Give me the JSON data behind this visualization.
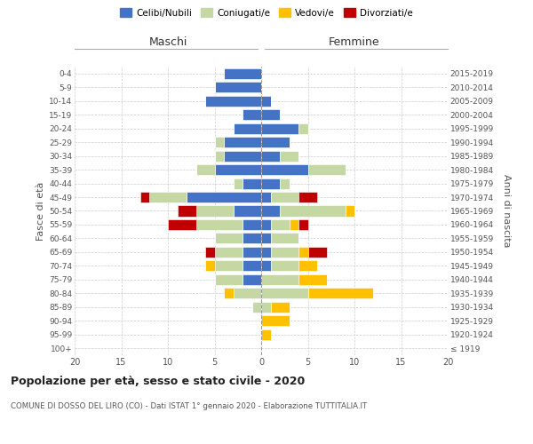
{
  "age_groups": [
    "100+",
    "95-99",
    "90-94",
    "85-89",
    "80-84",
    "75-79",
    "70-74",
    "65-69",
    "60-64",
    "55-59",
    "50-54",
    "45-49",
    "40-44",
    "35-39",
    "30-34",
    "25-29",
    "20-24",
    "15-19",
    "10-14",
    "5-9",
    "0-4"
  ],
  "birth_years": [
    "≤ 1919",
    "1920-1924",
    "1925-1929",
    "1930-1934",
    "1935-1939",
    "1940-1944",
    "1945-1949",
    "1950-1954",
    "1955-1959",
    "1960-1964",
    "1965-1969",
    "1970-1974",
    "1975-1979",
    "1980-1984",
    "1985-1989",
    "1990-1994",
    "1995-1999",
    "2000-2004",
    "2005-2009",
    "2010-2014",
    "2015-2019"
  ],
  "colors": {
    "celibe": "#4472c4",
    "coniugato": "#c5d8a4",
    "vedovo": "#ffc000",
    "divorziato": "#c00000"
  },
  "male": {
    "celibe": [
      0,
      0,
      0,
      0,
      0,
      2,
      2,
      2,
      2,
      2,
      3,
      8,
      2,
      5,
      4,
      4,
      3,
      2,
      6,
      5,
      4
    ],
    "coniugato": [
      0,
      0,
      0,
      1,
      3,
      3,
      3,
      3,
      3,
      5,
      4,
      4,
      1,
      2,
      1,
      1,
      0,
      0,
      0,
      0,
      0
    ],
    "vedovo": [
      0,
      0,
      0,
      0,
      1,
      0,
      1,
      0,
      0,
      0,
      0,
      0,
      0,
      0,
      0,
      0,
      0,
      0,
      0,
      0,
      0
    ],
    "divorziato": [
      0,
      0,
      0,
      0,
      0,
      0,
      0,
      1,
      0,
      3,
      2,
      1,
      0,
      0,
      0,
      0,
      0,
      0,
      0,
      0,
      0
    ]
  },
  "female": {
    "nubile": [
      0,
      0,
      0,
      0,
      0,
      0,
      1,
      1,
      1,
      1,
      2,
      1,
      2,
      5,
      2,
      3,
      4,
      2,
      1,
      0,
      0
    ],
    "coniugata": [
      0,
      0,
      0,
      1,
      5,
      4,
      3,
      3,
      3,
      2,
      7,
      3,
      1,
      4,
      2,
      0,
      1,
      0,
      0,
      0,
      0
    ],
    "vedova": [
      0,
      1,
      3,
      2,
      7,
      3,
      2,
      1,
      0,
      1,
      1,
      0,
      0,
      0,
      0,
      0,
      0,
      0,
      0,
      0,
      0
    ],
    "divorziata": [
      0,
      0,
      0,
      0,
      0,
      0,
      0,
      2,
      0,
      1,
      0,
      2,
      0,
      0,
      0,
      0,
      0,
      0,
      0,
      0,
      0
    ]
  },
  "xlim": 20,
  "title": "Popolazione per età, sesso e stato civile - 2020",
  "subtitle": "COMUNE DI DOSSO DEL LIRO (CO) - Dati ISTAT 1° gennaio 2020 - Elaborazione TUTTITALIA.IT",
  "ylabel_left": "Fasce di età",
  "ylabel_right": "Anni di nascita",
  "header_left": "Maschi",
  "header_right": "Femmine"
}
